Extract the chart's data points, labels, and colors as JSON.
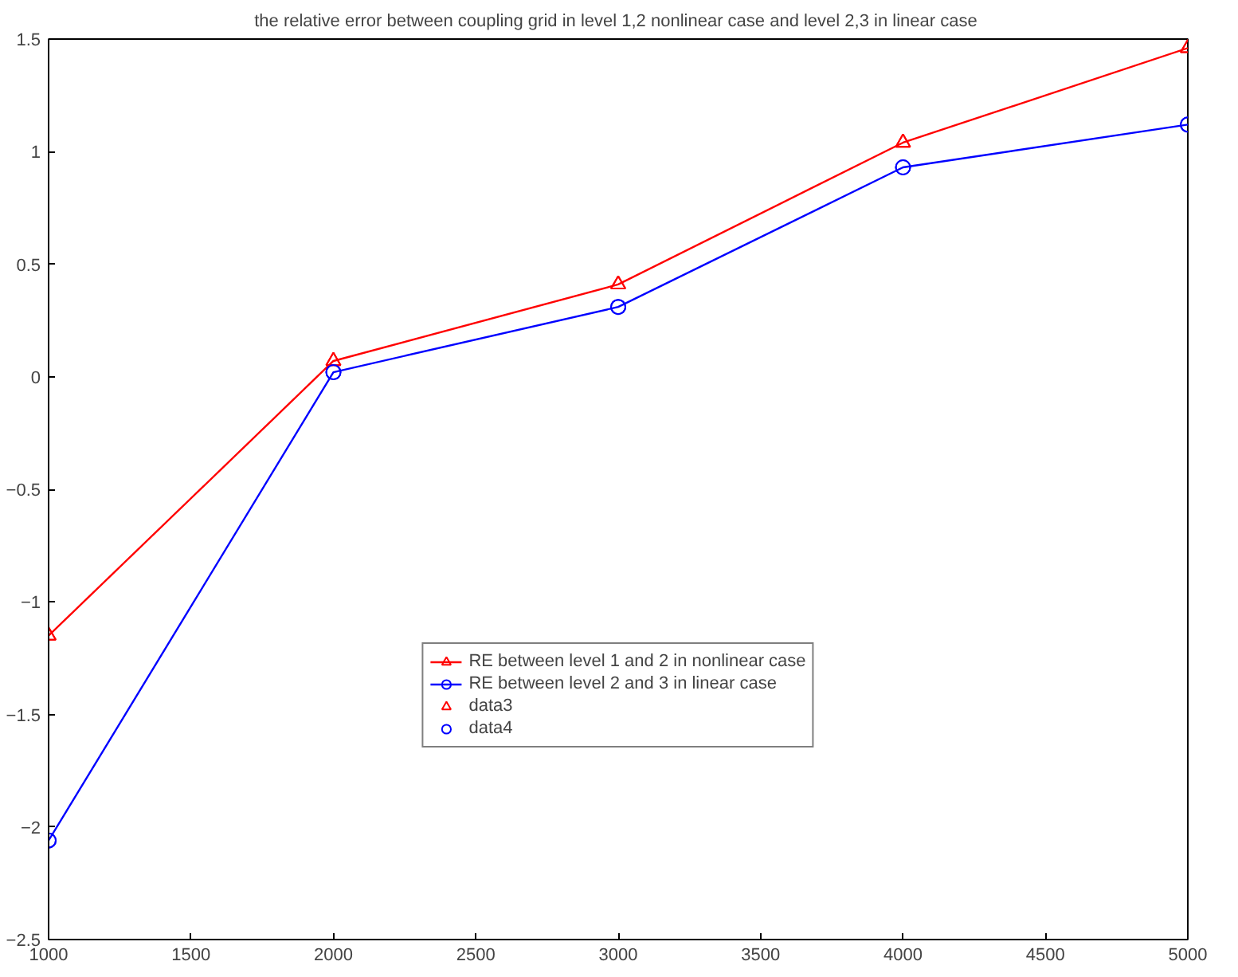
{
  "chart_data": {
    "type": "line",
    "title": "the relative error between coupling grid in level 1,2 nonlinear case  and level 2,3 in linear case",
    "x": [
      1000,
      2000,
      3000,
      4000,
      5000
    ],
    "series": [
      {
        "name": "RE between level 1 and 2 in nonlinear case",
        "color": "#ff0000",
        "marker": "triangle",
        "values": [
          -1.15,
          0.07,
          0.41,
          1.04,
          1.46
        ]
      },
      {
        "name": "RE between level 2 and 3 in linear case",
        "color": "#0000ff",
        "marker": "circle",
        "values": [
          -2.06,
          0.02,
          0.31,
          0.93,
          1.12
        ]
      },
      {
        "name": "data3",
        "color": "#ff0000",
        "marker": "triangle",
        "type": "scatter",
        "values": [
          -1.15,
          0.07,
          0.41,
          1.04,
          1.46
        ]
      },
      {
        "name": "data4",
        "color": "#0000ff",
        "marker": "circle",
        "type": "scatter",
        "values": [
          -2.06,
          0.02,
          0.31,
          0.93,
          1.12
        ]
      }
    ],
    "xlim": [
      1000,
      5000
    ],
    "xticks": [
      1000,
      1500,
      2000,
      2500,
      3000,
      3500,
      4000,
      4500,
      5000
    ],
    "ylim": [
      -2.5,
      1.5
    ],
    "yticks": [
      -2.5,
      -2,
      -1.5,
      -1,
      -0.5,
      0,
      0.5,
      1,
      1.5
    ],
    "grid": false,
    "legend": "bottom",
    "line_style": "solid"
  }
}
